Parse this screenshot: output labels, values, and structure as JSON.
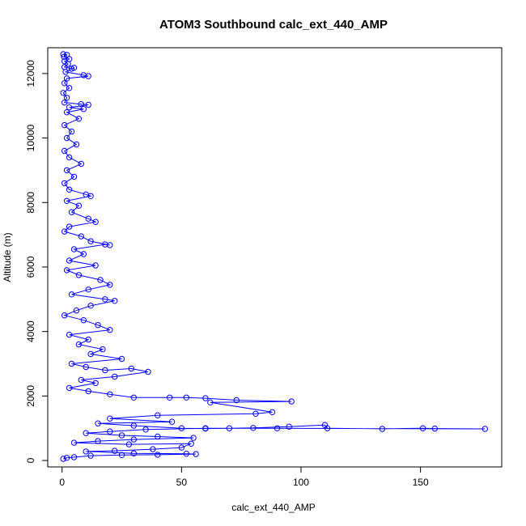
{
  "chart_data": {
    "type": "scatter",
    "title": "ATOM3 Southbound calc_ext_440_AMP",
    "xlabel": "calc_ext_440_AMP",
    "ylabel": "Altitude (m)",
    "xlim": [
      -6,
      184
    ],
    "ylim": [
      -200,
      12800
    ],
    "x_ticks": [
      0,
      50,
      100,
      150
    ],
    "y_ticks": [
      0,
      2000,
      4000,
      6000,
      8000,
      10000,
      12000
    ],
    "grid": false,
    "legend": "none",
    "marker": "open-circle",
    "connected": true,
    "series": [
      {
        "color": "#0000ff",
        "points": [
          [
            0.5,
            12600
          ],
          [
            2,
            12580
          ],
          [
            0.8,
            12520
          ],
          [
            3,
            12450
          ],
          [
            1,
            12380
          ],
          [
            2.5,
            12300
          ],
          [
            1,
            12200
          ],
          [
            4,
            12150
          ],
          [
            5,
            12180
          ],
          [
            1.5,
            12050
          ],
          [
            9,
            11950
          ],
          [
            11,
            11920
          ],
          [
            2,
            11850
          ],
          [
            1,
            11700
          ],
          [
            3,
            11550
          ],
          [
            0.5,
            11400
          ],
          [
            2,
            11250
          ],
          [
            1,
            11100
          ],
          [
            8,
            11050
          ],
          [
            11,
            11030
          ],
          [
            3,
            10950
          ],
          [
            9,
            10900
          ],
          [
            2,
            10800
          ],
          [
            7,
            10600
          ],
          [
            1,
            10400
          ],
          [
            4,
            10200
          ],
          [
            2,
            10000
          ],
          [
            6,
            9800
          ],
          [
            1,
            9600
          ],
          [
            3,
            9400
          ],
          [
            8,
            9200
          ],
          [
            2,
            9000
          ],
          [
            5,
            8800
          ],
          [
            1,
            8600
          ],
          [
            3,
            8400
          ],
          [
            10,
            8250
          ],
          [
            12,
            8200
          ],
          [
            2,
            8050
          ],
          [
            7,
            7900
          ],
          [
            4,
            7700
          ],
          [
            11,
            7500
          ],
          [
            14,
            7400
          ],
          [
            3,
            7250
          ],
          [
            1,
            7100
          ],
          [
            8,
            6950
          ],
          [
            12,
            6800
          ],
          [
            20,
            6680
          ],
          [
            18,
            6700
          ],
          [
            5,
            6550
          ],
          [
            9,
            6400
          ],
          [
            3,
            6200
          ],
          [
            14,
            6050
          ],
          [
            2,
            5900
          ],
          [
            7,
            5750
          ],
          [
            16,
            5600
          ],
          [
            20,
            5450
          ],
          [
            11,
            5300
          ],
          [
            4,
            5150
          ],
          [
            18,
            5000
          ],
          [
            22,
            4950
          ],
          [
            12,
            4800
          ],
          [
            6,
            4650
          ],
          [
            1,
            4500
          ],
          [
            9,
            4350
          ],
          [
            15,
            4200
          ],
          [
            20,
            4050
          ],
          [
            3,
            3900
          ],
          [
            11,
            3750
          ],
          [
            7,
            3600
          ],
          [
            17,
            3450
          ],
          [
            12,
            3300
          ],
          [
            25,
            3150
          ],
          [
            4,
            3000
          ],
          [
            10,
            2900
          ],
          [
            18,
            2800
          ],
          [
            29,
            2850
          ],
          [
            36,
            2750
          ],
          [
            22,
            2600
          ],
          [
            8,
            2500
          ],
          [
            14,
            2400
          ],
          [
            3,
            2250
          ],
          [
            11,
            2150
          ],
          [
            20,
            2050
          ],
          [
            30,
            1950
          ],
          [
            45,
            1950
          ],
          [
            52,
            1950
          ],
          [
            60,
            1930
          ],
          [
            73,
            1870
          ],
          [
            96,
            1830
          ],
          [
            62,
            1800
          ],
          [
            88,
            1500
          ],
          [
            81,
            1450
          ],
          [
            40,
            1400
          ],
          [
            20,
            1300
          ],
          [
            46,
            1200
          ],
          [
            15,
            1150
          ],
          [
            30,
            1080
          ],
          [
            50,
            1000
          ],
          [
            60,
            990
          ],
          [
            70,
            1000
          ],
          [
            80,
            1010
          ],
          [
            95,
            1050
          ],
          [
            110,
            1100
          ],
          [
            111,
            1000
          ],
          [
            134,
            980
          ],
          [
            151,
            1000
          ],
          [
            156,
            990
          ],
          [
            177,
            980
          ],
          [
            90,
            1000
          ],
          [
            60,
            1000
          ],
          [
            35,
            960
          ],
          [
            20,
            900
          ],
          [
            10,
            850
          ],
          [
            25,
            780
          ],
          [
            40,
            740
          ],
          [
            55,
            700
          ],
          [
            30,
            650
          ],
          [
            15,
            600
          ],
          [
            5,
            550
          ],
          [
            28,
            500
          ],
          [
            54,
            520
          ],
          [
            50,
            400
          ],
          [
            38,
            350
          ],
          [
            22,
            300
          ],
          [
            10,
            280
          ],
          [
            30,
            220
          ],
          [
            52,
            210
          ],
          [
            56,
            200
          ],
          [
            40,
            180
          ],
          [
            25,
            170
          ],
          [
            12,
            150
          ],
          [
            5,
            100
          ],
          [
            2,
            80
          ],
          [
            0.5,
            50
          ]
        ]
      }
    ]
  }
}
